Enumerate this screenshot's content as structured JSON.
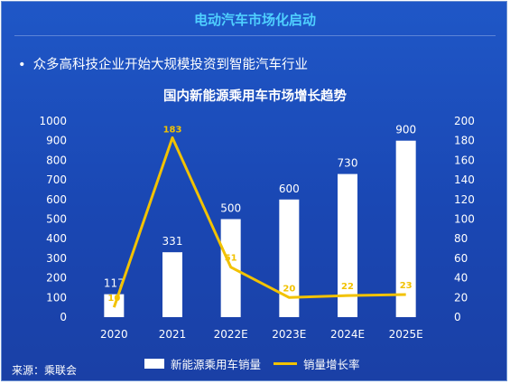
{
  "header": {
    "title": "电动汽车市场化启动"
  },
  "bullet": {
    "marker": "•",
    "text": "众多高科技企业开始大规模投资到智能汽车行业"
  },
  "source": "来源：乘联会",
  "colors": {
    "background": "#1c4bb8",
    "bar": "#ffffff",
    "line": "#f2c200",
    "header": "#4fd0ff"
  },
  "chart_data": {
    "type": "bar",
    "title": "国内新能源乘用车市场增长趋势",
    "categories": [
      "2020",
      "2021",
      "2022E",
      "2023E",
      "2024E",
      "2025E"
    ],
    "series": [
      {
        "name": "新能源乘用车销量",
        "type": "bar",
        "axis": "left",
        "values": [
          117,
          331,
          500,
          600,
          730,
          900
        ]
      },
      {
        "name": "销量增长率",
        "type": "line",
        "axis": "right",
        "values": [
          10,
          183,
          51,
          20,
          22,
          23
        ]
      }
    ],
    "ylim_left": [
      0,
      1000
    ],
    "yticks_left": [
      0,
      100,
      200,
      300,
      400,
      500,
      600,
      700,
      800,
      900,
      1000
    ],
    "ylim_right": [
      0,
      200
    ],
    "yticks_right": [
      0,
      20,
      40,
      60,
      80,
      100,
      120,
      140,
      160,
      180,
      200
    ],
    "grid": false,
    "legend_position": "bottom"
  }
}
